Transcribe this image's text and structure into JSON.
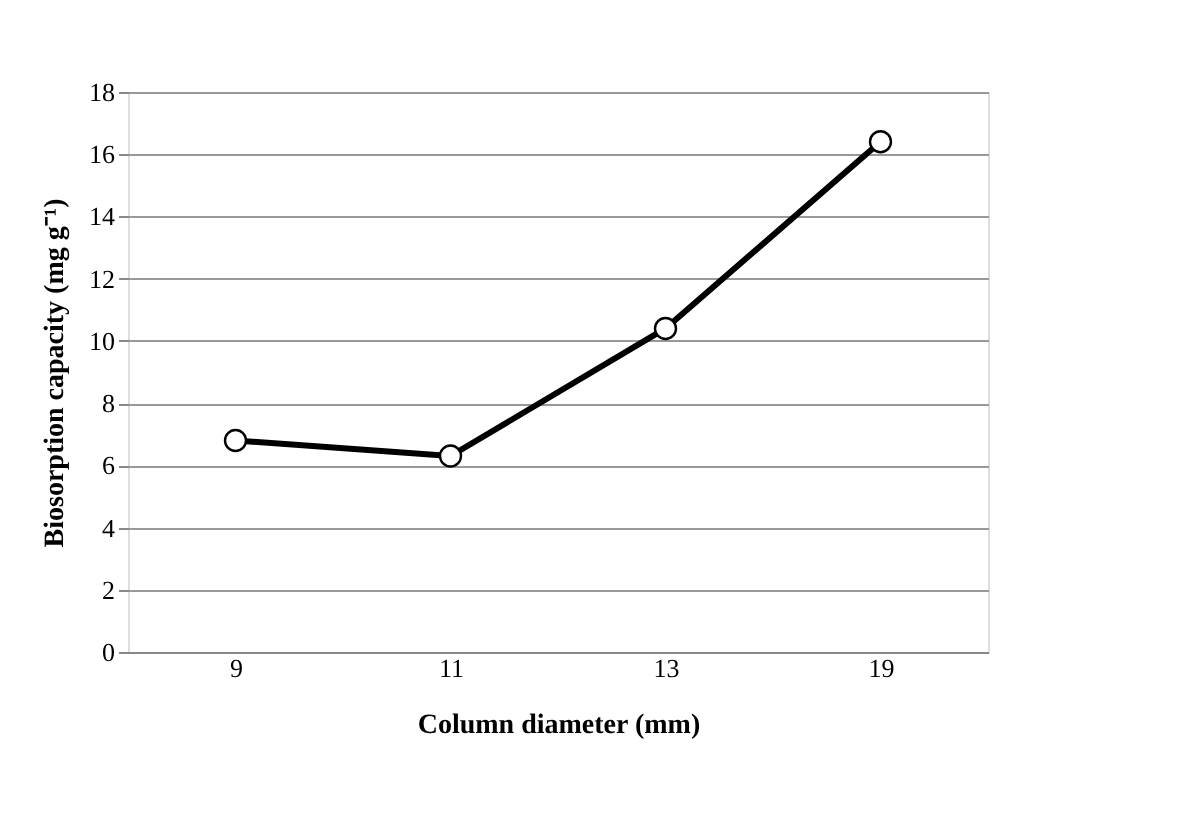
{
  "chart_data": {
    "type": "line",
    "xlabel": "Column diameter (mm)",
    "ylabel": "Biosorption capacity (mg g⁻¹)",
    "categories": [
      "9",
      "11",
      "13",
      "19"
    ],
    "series": [
      {
        "color": "#000000",
        "values": [
          6.8,
          6.3,
          10.4,
          16.4
        ]
      }
    ],
    "ylim": [
      0,
      18
    ],
    "yticks": [
      0,
      2,
      4,
      6,
      8,
      10,
      12,
      14,
      16,
      18
    ],
    "grid": "y",
    "marker": "circle",
    "line_style": "solid",
    "legend": false
  }
}
